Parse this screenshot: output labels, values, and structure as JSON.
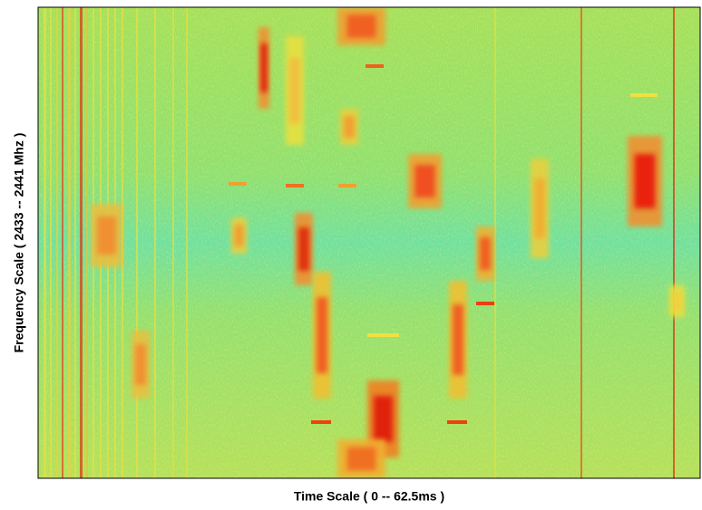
{
  "chart_data": {
    "type": "spectrogram",
    "x_label": "Time Scale ( 0 -- 62.5ms )",
    "y_label": "Frequency Scale ( 2433 -- 2441 Mhz )"
  }
}
